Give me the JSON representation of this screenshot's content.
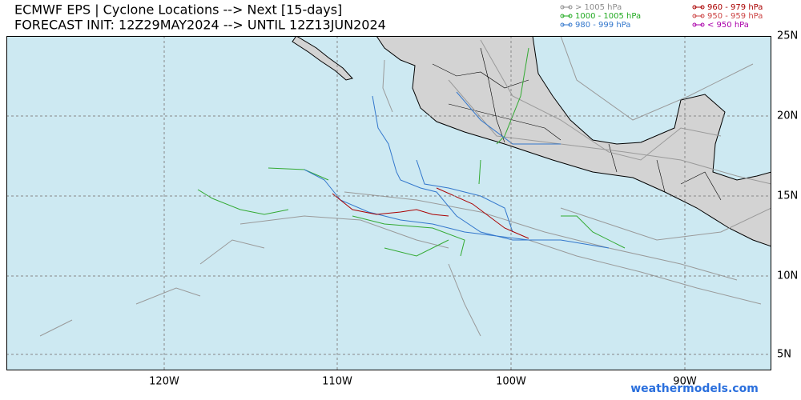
{
  "header": {
    "title": "ECMWF EPS | Cyclone Locations --> Next [15-days]",
    "subtitle": "FORECAST INIT: 12Z29MAY2024 --> UNTIL 12Z13JUN2024"
  },
  "legend": [
    {
      "label": "> 1005 hPa",
      "color": "#8c8c8c"
    },
    {
      "label": "1000 - 1005 hPa",
      "color": "#22aa22"
    },
    {
      "label": "980 - 999 hPa",
      "color": "#3377cc"
    },
    {
      "label": "960 - 979 hPa",
      "color": "#aa0000"
    },
    {
      "label": "950 - 959 hPa",
      "color": "#cc4444"
    },
    {
      "label": "< 950 hPa",
      "color": "#aa00aa"
    }
  ],
  "map": {
    "lon_labels": [
      "120W",
      "110W",
      "100W",
      "90W"
    ],
    "lat_labels": [
      "25N",
      "20N",
      "15N",
      "10N",
      "5N"
    ]
  },
  "watermark": "weathermodels.com"
}
